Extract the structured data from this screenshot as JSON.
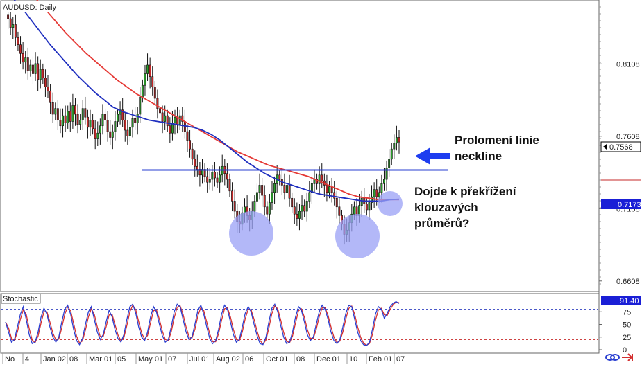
{
  "chart_data": {
    "type": "candlestick",
    "title": "AUDUSD: Daily",
    "x_tick_labels": [
      "No",
      "4",
      "Jan 02",
      "08",
      "Mar 01",
      "05",
      "May 01",
      "07",
      "Jul 01",
      "Aug 02",
      "06",
      "Oct 01",
      "08",
      "Dec 01",
      "10",
      "Feb 01",
      "07"
    ],
    "y_ticks": [
      "0.8108",
      "0.7608",
      "0.7108",
      "0.6608"
    ],
    "ylim": [
      0.654,
      0.854
    ],
    "current_price": "0.7568",
    "ma_price": "0.7173",
    "neckline_level": 0.7375,
    "price_series": {
      "close_points": [
        0.845,
        0.842,
        0.836,
        0.838,
        0.829,
        0.824,
        0.818,
        0.812,
        0.815,
        0.806,
        0.81,
        0.804,
        0.811,
        0.8,
        0.807,
        0.801,
        0.795,
        0.792,
        0.784,
        0.776,
        0.78,
        0.772,
        0.768,
        0.775,
        0.77,
        0.778,
        0.771,
        0.782,
        0.776,
        0.769,
        0.772,
        0.78,
        0.774,
        0.767,
        0.772,
        0.766,
        0.759,
        0.763,
        0.768,
        0.776,
        0.772,
        0.764,
        0.76,
        0.764,
        0.771,
        0.776,
        0.779,
        0.772,
        0.765,
        0.761,
        0.767,
        0.773,
        0.77,
        0.776,
        0.788,
        0.796,
        0.804,
        0.81,
        0.802,
        0.795,
        0.787,
        0.78,
        0.777,
        0.771,
        0.775,
        0.768,
        0.763,
        0.77,
        0.774,
        0.769,
        0.775,
        0.771,
        0.764,
        0.758,
        0.752,
        0.745,
        0.74,
        0.738,
        0.734,
        0.738,
        0.733,
        0.729,
        0.731,
        0.736,
        0.732,
        0.729,
        0.734,
        0.74,
        0.735,
        0.731,
        0.723,
        0.716,
        0.709,
        0.702,
        0.7,
        0.708,
        0.712,
        0.706,
        0.703,
        0.709,
        0.716,
        0.722,
        0.727,
        0.72,
        0.712,
        0.707,
        0.715,
        0.722,
        0.728,
        0.734,
        0.731,
        0.727,
        0.722,
        0.727,
        0.718,
        0.712,
        0.707,
        0.704,
        0.709,
        0.713,
        0.709,
        0.716,
        0.722,
        0.728,
        0.731,
        0.728,
        0.734,
        0.73,
        0.727,
        0.722,
        0.726,
        0.722,
        0.718,
        0.712,
        0.706,
        0.7,
        0.693,
        0.696,
        0.701,
        0.707,
        0.712,
        0.706,
        0.713,
        0.718,
        0.714,
        0.71,
        0.715,
        0.719,
        0.724,
        0.719,
        0.722,
        0.728,
        0.731,
        0.739,
        0.745,
        0.752,
        0.756,
        0.76,
        0.7568
      ],
      "ma_fast_points": [
        0.862,
        0.855,
        0.848,
        0.84,
        0.832,
        0.824,
        0.817,
        0.81,
        0.803,
        0.797,
        0.791,
        0.786,
        0.781,
        0.778,
        0.776,
        0.774,
        0.772,
        0.771,
        0.77,
        0.769,
        0.768,
        0.767,
        0.765,
        0.762,
        0.758,
        0.753,
        0.748,
        0.743,
        0.739,
        0.735,
        0.732,
        0.729,
        0.727,
        0.725,
        0.723,
        0.721,
        0.72,
        0.719,
        0.718,
        0.717,
        0.716,
        0.716,
        0.716,
        0.717,
        0.7173
      ],
      "ma_slow_points": [
        0.88,
        0.872,
        0.864,
        0.856,
        0.848,
        0.84,
        0.832,
        0.825,
        0.818,
        0.812,
        0.806,
        0.8,
        0.795,
        0.79,
        0.786,
        0.782,
        0.778,
        0.774,
        0.77,
        0.766,
        0.762,
        0.758,
        0.754,
        0.75,
        0.747,
        0.744,
        0.741,
        0.739,
        0.737,
        0.735,
        0.733,
        0.73,
        0.727,
        0.724,
        0.721,
        0.719,
        0.718,
        0.717,
        0.717,
        0.717
      ]
    },
    "stochastic": {
      "title": "Stochastic",
      "value": "91.40",
      "y_ticks": [
        "75",
        "50",
        "25",
        "0"
      ],
      "levels": [
        80,
        20
      ],
      "k_values": [
        55,
        35,
        15,
        20,
        45,
        70,
        85,
        60,
        30,
        12,
        15,
        35,
        65,
        82,
        70,
        45,
        25,
        15,
        25,
        55,
        80,
        88,
        70,
        40,
        18,
        10,
        22,
        50,
        75,
        85,
        60,
        35,
        20,
        30,
        55,
        78,
        65,
        40,
        22,
        15,
        30,
        60,
        85,
        90,
        72,
        45,
        25,
        18,
        35,
        65,
        85,
        75,
        50,
        28,
        15,
        20,
        45,
        75,
        90,
        85,
        60,
        35,
        20,
        25,
        50,
        78,
        88,
        70,
        45,
        22,
        12,
        18,
        40,
        70,
        88,
        80,
        55,
        30,
        15,
        20,
        45,
        72,
        85,
        75,
        50,
        28,
        12,
        10,
        25,
        55,
        82,
        90,
        75,
        48,
        25,
        12,
        15,
        35,
        65,
        85,
        78,
        55,
        30,
        18,
        25,
        50,
        75,
        88,
        80,
        60,
        35,
        18,
        12,
        20,
        45,
        72,
        88,
        85,
        60,
        35,
        18,
        10,
        8,
        15,
        40,
        70,
        85,
        80,
        62,
        72,
        85,
        92,
        95,
        91.4
      ]
    }
  },
  "annotations": {
    "breakout_line1": "Prolomení linie",
    "breakout_line2": "neckline",
    "cross_line1": "Dojde k překřížení",
    "cross_line2": "klouzavých",
    "cross_line3": "průměrů?"
  },
  "colors": {
    "bull": "#2ca02c",
    "bear": "#c62828",
    "ma_fast": "#1f2fbf",
    "ma_slow": "#e53935",
    "neckline": "#2a3fd1",
    "highlight": "#9aa0f5",
    "arrow": "#1e3df0",
    "ma_tag": "#1a1fd6",
    "stoch_tag": "#1a1fd6"
  }
}
